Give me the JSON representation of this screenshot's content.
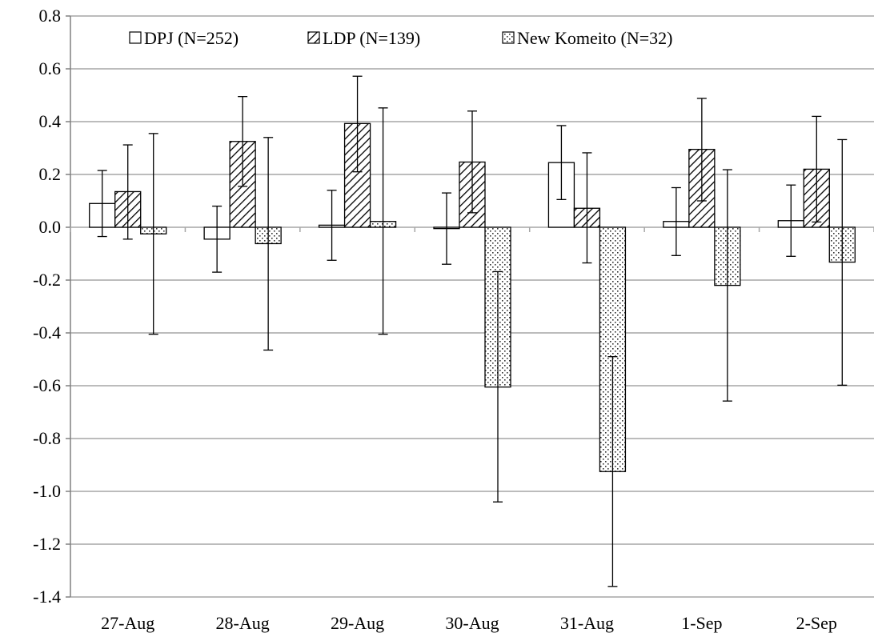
{
  "chart_data": {
    "type": "bar",
    "categories": [
      "27-Aug",
      "28-Aug",
      "29-Aug",
      "30-Aug",
      "31-Aug",
      "1-Sep",
      "2-Sep"
    ],
    "ylim": [
      -1.4,
      0.8
    ],
    "yticks": [
      0.8,
      0.6,
      0.4,
      0.2,
      0.0,
      -0.2,
      -0.4,
      -0.6,
      -0.8,
      -1.0,
      -1.2,
      -1.4
    ],
    "ytick_labels": [
      "0.8",
      "0.6",
      "0.4",
      "0.2",
      "0.0",
      "-0.2",
      "-0.4",
      "-0.6",
      "-0.8",
      "-1.0",
      "-1.2",
      "-1.4"
    ],
    "grid": true,
    "legend_position": "top",
    "error_bars": true,
    "series": [
      {
        "name": "DPJ (N=252)",
        "pattern": "solid-white",
        "values": [
          0.09,
          -0.045,
          0.008,
          -0.005,
          0.245,
          0.022,
          0.025
        ],
        "err_low": [
          -0.035,
          -0.17,
          -0.125,
          -0.14,
          0.105,
          -0.107,
          -0.11
        ],
        "err_high": [
          0.215,
          0.08,
          0.14,
          0.13,
          0.385,
          0.15,
          0.16
        ]
      },
      {
        "name": "LDP (N=139)",
        "pattern": "diagonal-hatch",
        "values": [
          0.135,
          0.325,
          0.393,
          0.247,
          0.072,
          0.295,
          0.22
        ],
        "err_low": [
          -0.045,
          0.155,
          0.21,
          0.055,
          -0.135,
          0.1,
          0.02
        ],
        "err_high": [
          0.312,
          0.495,
          0.572,
          0.44,
          0.282,
          0.488,
          0.42
        ]
      },
      {
        "name": "New Komeito (N=32)",
        "pattern": "dots",
        "values": [
          -0.025,
          -0.062,
          0.022,
          -0.605,
          -0.925,
          -0.22,
          -0.132
        ],
        "err_low": [
          -0.405,
          -0.465,
          -0.405,
          -1.04,
          -1.36,
          -0.658,
          -0.598
        ],
        "err_high": [
          0.355,
          0.34,
          0.452,
          -0.168,
          -0.49,
          0.218,
          0.332
        ]
      }
    ]
  }
}
